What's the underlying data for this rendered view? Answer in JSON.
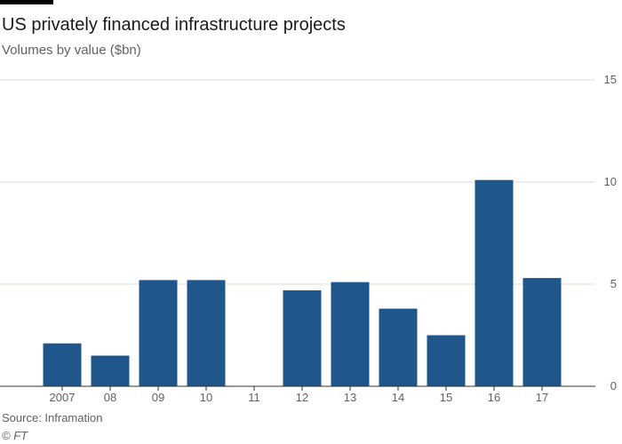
{
  "title": "US privately financed infrastructure projects",
  "subtitle": "Volumes by value ($bn)",
  "source": "Source: Inframation",
  "credit": "© FT",
  "colors": {
    "bar": "#1f568b",
    "grid": "#e3dcd5",
    "baseline": "#33302e",
    "accent_rule": "#000000"
  },
  "chart_data": {
    "type": "bar",
    "categories": [
      "2007",
      "08",
      "09",
      "10",
      "11",
      "12",
      "13",
      "14",
      "15",
      "16",
      "17"
    ],
    "values": [
      2.1,
      1.5,
      5.2,
      5.2,
      0,
      4.7,
      5.1,
      3.8,
      2.5,
      10.1,
      5.3
    ],
    "y_ticks": [
      0,
      5,
      10,
      15
    ],
    "ylim": [
      0,
      15
    ],
    "y_axis_side": "right",
    "grid": true,
    "legend": "none"
  }
}
